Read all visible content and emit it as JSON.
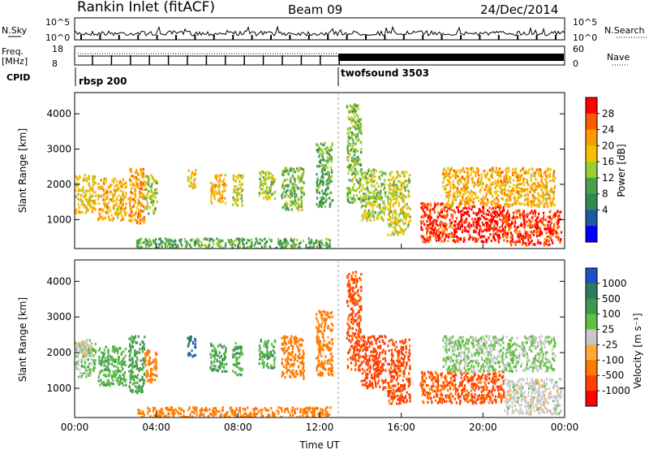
{
  "header": {
    "title": "Rankin Inlet (fitACF)",
    "beam": "Beam 09",
    "date": "24/Dec/2014"
  },
  "strips": {
    "nsky_label": "N.Sky",
    "nsearch_label": "N.Search",
    "nsky_ticks": [
      "10^5",
      "10^0"
    ],
    "nsearch_ticks": [
      "10^5",
      "10^0"
    ],
    "freq_label": "Freq.",
    "freq_unit": "[MHz]",
    "freq_ticks": [
      "18",
      "8"
    ],
    "nave_label": "Nave",
    "nave_ticks": [
      "60",
      "0"
    ],
    "cpid_label": "CPID",
    "cpid_segments": [
      {
        "name": "rbsp 200",
        "start_hour": 0
      },
      {
        "name": "twofsound 3503",
        "start_hour": 13.0
      }
    ]
  },
  "chart_data": [
    {
      "type": "heatmap",
      "panel": "power",
      "ylabel": "Slant Range [km]",
      "xlabel": "",
      "x_ticks": [
        "00:00",
        "04:00",
        "08:00",
        "12:00",
        "16:00",
        "20:00",
        "00:00"
      ],
      "xlim": [
        0,
        24
      ],
      "ylim": [
        180,
        4600
      ],
      "y_ticks": [
        1000,
        2000,
        3000,
        4000
      ],
      "colorbar": {
        "label": "Power [dB]",
        "ticks": [
          "28",
          "24",
          "20",
          "16",
          "12",
          "8",
          "4"
        ],
        "colors": [
          "#ff0000",
          "#ff5a00",
          "#ff9a00",
          "#f4c000",
          "#9acd32",
          "#4aa04a",
          "#2e8b57",
          "#1e5aa0",
          "#0000ff"
        ]
      },
      "blobs": [
        {
          "t0": 0.0,
          "t1": 1.0,
          "r0": 1200,
          "r1": 2300,
          "v": 18
        },
        {
          "t0": 1.1,
          "t1": 2.5,
          "r0": 1000,
          "r1": 2200,
          "v": 20
        },
        {
          "t0": 2.6,
          "t1": 3.4,
          "r0": 900,
          "r1": 2500,
          "v": 22
        },
        {
          "t0": 3.4,
          "t1": 4.0,
          "r0": 1200,
          "r1": 2300,
          "v": 14
        },
        {
          "t0": 5.5,
          "t1": 5.9,
          "r0": 1900,
          "r1": 2500,
          "v": 18
        },
        {
          "t0": 6.6,
          "t1": 7.4,
          "r0": 1500,
          "r1": 2300,
          "v": 20
        },
        {
          "t0": 7.7,
          "t1": 8.2,
          "r0": 1400,
          "r1": 2300,
          "v": 16
        },
        {
          "t0": 9.0,
          "t1": 9.8,
          "r0": 1600,
          "r1": 2400,
          "v": 14
        },
        {
          "t0": 10.1,
          "t1": 11.2,
          "r0": 1300,
          "r1": 2500,
          "v": 12
        },
        {
          "t0": 11.8,
          "t1": 12.6,
          "r0": 1400,
          "r1": 3200,
          "v": 10
        },
        {
          "t0": 13.3,
          "t1": 14.0,
          "r0": 1500,
          "r1": 4300,
          "v": 12
        },
        {
          "t0": 14.0,
          "t1": 15.2,
          "r0": 1000,
          "r1": 2500,
          "v": 14
        },
        {
          "t0": 15.3,
          "t1": 16.4,
          "r0": 600,
          "r1": 2400,
          "v": 16
        },
        {
          "t0": 16.9,
          "t1": 18.5,
          "r0": 400,
          "r1": 1500,
          "v": 28
        },
        {
          "t0": 18.5,
          "t1": 21.0,
          "r0": 400,
          "r1": 1400,
          "v": 30
        },
        {
          "t0": 18.0,
          "t1": 23.5,
          "r0": 1400,
          "r1": 2500,
          "v": 20
        },
        {
          "t0": 21.0,
          "t1": 23.8,
          "r0": 300,
          "r1": 1300,
          "v": 28
        },
        {
          "t0": 3.0,
          "t1": 12.5,
          "r0": 200,
          "r1": 500,
          "v": 10
        }
      ]
    },
    {
      "type": "heatmap",
      "panel": "velocity",
      "ylabel": "Slant Range [km]",
      "xlabel": "Time UT",
      "x_ticks": [
        "00:00",
        "04:00",
        "08:00",
        "12:00",
        "16:00",
        "20:00",
        "00:00"
      ],
      "xlim": [
        0,
        24
      ],
      "ylim": [
        180,
        4600
      ],
      "y_ticks": [
        1000,
        2000,
        3000,
        4000
      ],
      "colorbar": {
        "label": "Velocity [m s⁻¹]",
        "ticks": [
          "1000",
          "500",
          "100",
          "25",
          "-25",
          "-100",
          "-500",
          "-1000"
        ],
        "colors": [
          "#1e50c8",
          "#2e7d5a",
          "#3c9a50",
          "#60c040",
          "#c8c8c8",
          "#ffaa33",
          "#ff7a00",
          "#ff4000",
          "#ff0000"
        ]
      },
      "blobs": [
        {
          "t0": 0.0,
          "t1": 1.0,
          "r0": 1300,
          "r1": 2300,
          "v": 40
        },
        {
          "t0": 0.0,
          "t1": 0.8,
          "r0": 1900,
          "r1": 2400,
          "v": 0
        },
        {
          "t0": 1.1,
          "t1": 2.5,
          "r0": 1100,
          "r1": 2200,
          "v": 60
        },
        {
          "t0": 2.6,
          "t1": 3.4,
          "r0": 900,
          "r1": 2500,
          "v": 80
        },
        {
          "t0": 3.4,
          "t1": 4.0,
          "r0": 1200,
          "r1": 2100,
          "v": -200
        },
        {
          "t0": 5.5,
          "t1": 5.9,
          "r0": 1900,
          "r1": 2500,
          "v": 800
        },
        {
          "t0": 6.6,
          "t1": 7.4,
          "r0": 1500,
          "r1": 2300,
          "v": 80
        },
        {
          "t0": 7.7,
          "t1": 8.2,
          "r0": 1400,
          "r1": 2300,
          "v": 60
        },
        {
          "t0": 9.0,
          "t1": 9.8,
          "r0": 1600,
          "r1": 2400,
          "v": 60
        },
        {
          "t0": 10.1,
          "t1": 11.2,
          "r0": 1300,
          "r1": 2500,
          "v": -200
        },
        {
          "t0": 11.8,
          "t1": 12.6,
          "r0": 1400,
          "r1": 3200,
          "v": -150
        },
        {
          "t0": 13.3,
          "t1": 14.0,
          "r0": 1500,
          "r1": 4300,
          "v": -400
        },
        {
          "t0": 14.0,
          "t1": 15.2,
          "r0": 1000,
          "r1": 2500,
          "v": -500
        },
        {
          "t0": 15.3,
          "t1": 16.4,
          "r0": 600,
          "r1": 2400,
          "v": -400
        },
        {
          "t0": 16.9,
          "t1": 18.5,
          "r0": 600,
          "r1": 1500,
          "v": -300
        },
        {
          "t0": 18.5,
          "t1": 21.0,
          "r0": 600,
          "r1": 1500,
          "v": -350
        },
        {
          "t0": 18.0,
          "t1": 23.5,
          "r0": 1500,
          "r1": 2500,
          "v": 30
        },
        {
          "t0": 21.0,
          "t1": 23.8,
          "r0": 300,
          "r1": 1300,
          "v": 0
        },
        {
          "t0": 3.0,
          "t1": 12.5,
          "r0": 200,
          "r1": 500,
          "v": -150
        }
      ]
    }
  ]
}
